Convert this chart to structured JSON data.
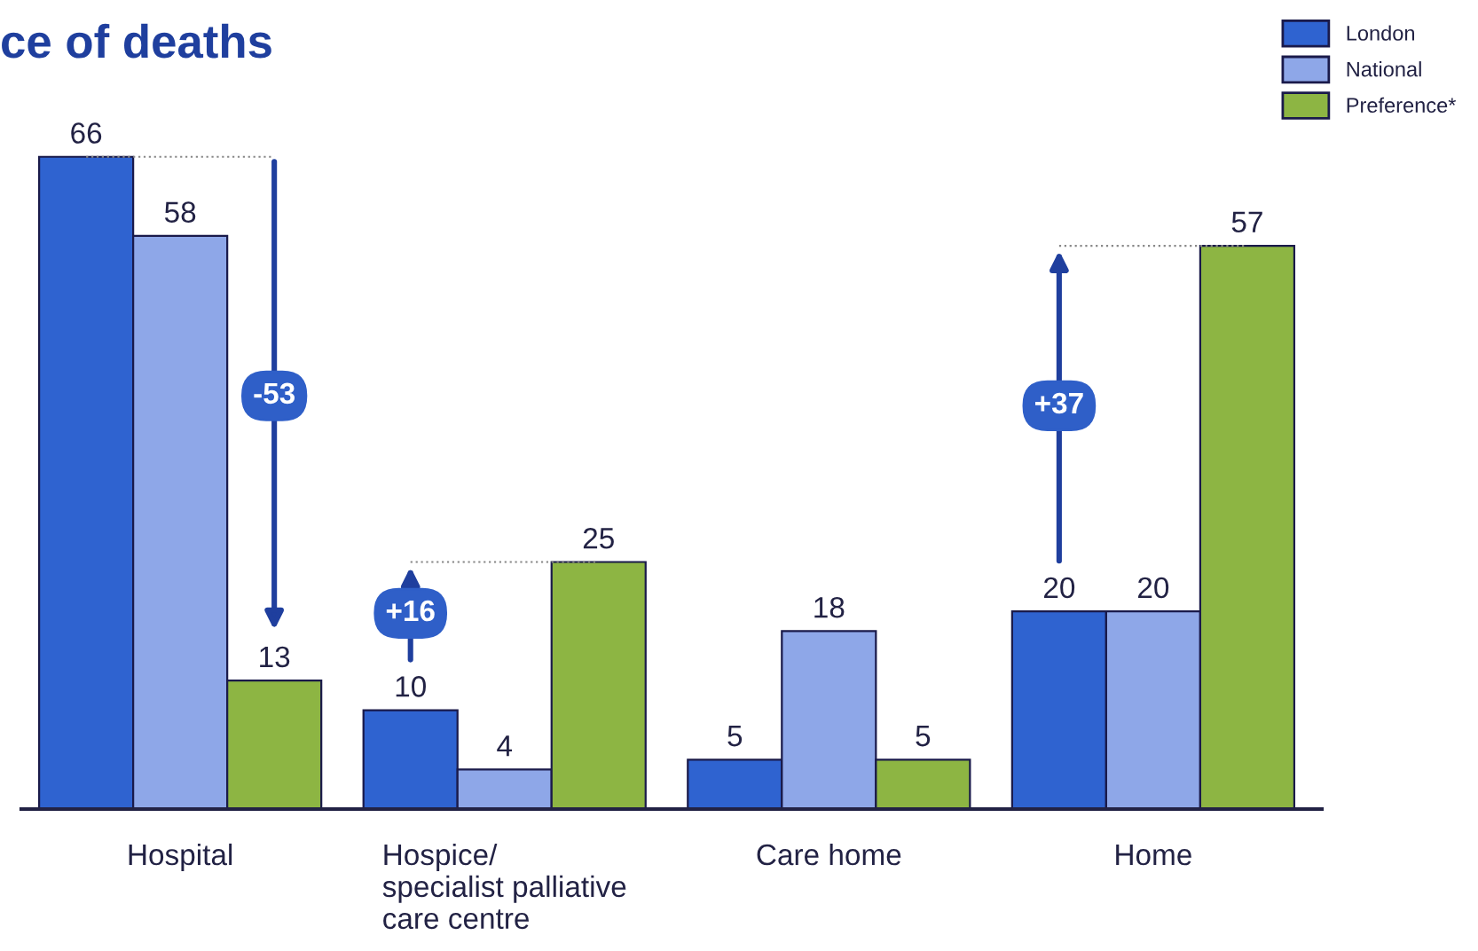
{
  "chart_data": {
    "type": "bar",
    "title": "ce of deaths",
    "categories": [
      "Hospital",
      "Hospice/\nspecialist palliative\ncare centre",
      "Care home",
      "Home"
    ],
    "series": [
      {
        "name": "London",
        "color": "#2f63d0",
        "values": [
          66,
          10,
          5,
          20
        ]
      },
      {
        "name": "National",
        "color": "#8ea7e8",
        "values": [
          58,
          4,
          18,
          20
        ]
      },
      {
        "name": "Preference*",
        "color": "#8db543",
        "values": [
          13,
          25,
          5,
          57
        ]
      }
    ],
    "data_labels": true,
    "legend": "top right",
    "grid": false,
    "annotations": [
      "-53",
      "+16",
      "+37"
    ]
  }
}
